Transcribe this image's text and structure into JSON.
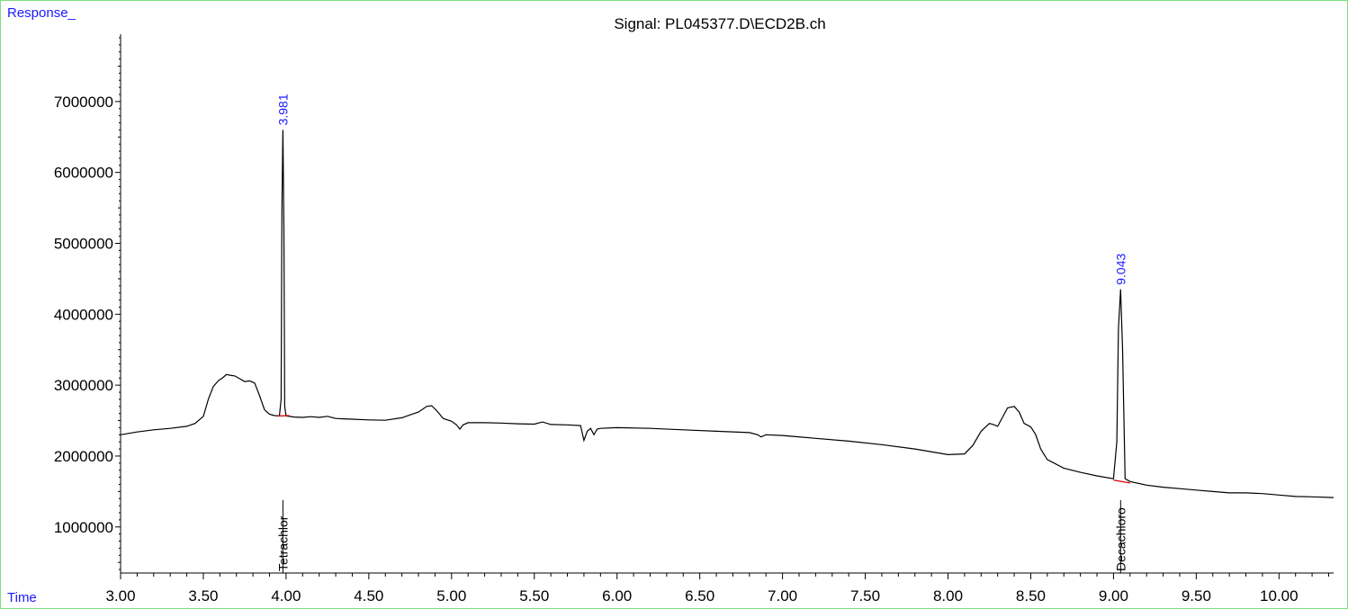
{
  "y_corner_label": "Response_",
  "x_corner_label": "Time",
  "colors": {
    "frame": "#7fe07f",
    "signal": "#000000",
    "baseline": "#d40000",
    "peak_label": "#1a1aff",
    "axis": "#000000"
  },
  "chart_data": {
    "type": "line",
    "title": "Signal: PL045377.D\\ECD2B.ch",
    "xlabel": "Time",
    "ylabel": "Response_",
    "xlim": [
      3.0,
      10.33
    ],
    "ylim": [
      350000,
      7950000
    ],
    "x_ticks": [
      3.0,
      3.5,
      4.0,
      4.5,
      5.0,
      5.5,
      6.0,
      6.5,
      7.0,
      7.5,
      8.0,
      8.5,
      9.0,
      9.5,
      10.0
    ],
    "x_tick_labels": [
      "3.00",
      "3.50",
      "4.00",
      "4.50",
      "5.00",
      "5.50",
      "6.00",
      "6.50",
      "7.00",
      "7.50",
      "8.00",
      "8.50",
      "9.00",
      "9.50",
      "10.00"
    ],
    "y_ticks": [
      1000000,
      2000000,
      3000000,
      4000000,
      5000000,
      6000000,
      7000000
    ],
    "y_tick_labels": [
      "1000000",
      "2000000",
      "3000000",
      "4000000",
      "5000000",
      "6000000",
      "7000000"
    ],
    "grid": false,
    "series": [
      {
        "x": [
          3.0,
          3.1,
          3.2,
          3.3,
          3.4,
          3.45,
          3.5,
          3.53,
          3.56,
          3.59,
          3.62,
          3.64,
          3.66,
          3.69,
          3.72,
          3.75,
          3.78,
          3.81,
          3.84,
          3.87,
          3.9,
          3.93,
          3.96,
          3.97,
          3.975,
          3.981,
          3.987,
          3.992,
          4.0,
          4.05,
          4.1,
          4.15,
          4.2,
          4.25,
          4.3,
          4.35,
          4.4,
          4.5,
          4.6,
          4.7,
          4.75,
          4.8,
          4.85,
          4.88,
          4.91,
          4.95,
          5.0,
          5.03,
          5.05,
          5.07,
          5.1,
          5.2,
          5.3,
          5.4,
          5.5,
          5.55,
          5.6,
          5.7,
          5.78,
          5.8,
          5.82,
          5.84,
          5.86,
          5.88,
          5.9,
          6.0,
          6.2,
          6.4,
          6.6,
          6.8,
          6.85,
          6.87,
          6.9,
          7.0,
          7.2,
          7.4,
          7.6,
          7.8,
          8.0,
          8.1,
          8.15,
          8.2,
          8.25,
          8.28,
          8.3,
          8.33,
          8.36,
          8.4,
          8.43,
          8.46,
          8.5,
          8.53,
          8.56,
          8.6,
          8.7,
          8.8,
          8.9,
          9.0,
          9.02,
          9.03,
          9.043,
          9.055,
          9.07,
          9.1,
          9.2,
          9.3,
          9.4,
          9.5,
          9.6,
          9.7,
          9.8,
          9.9,
          10.0,
          10.1,
          10.2,
          10.33
        ],
        "y": [
          2300000,
          2340000,
          2370000,
          2390000,
          2420000,
          2460000,
          2560000,
          2800000,
          2980000,
          3060000,
          3110000,
          3150000,
          3140000,
          3130000,
          3090000,
          3050000,
          3060000,
          3030000,
          2850000,
          2650000,
          2590000,
          2570000,
          2565000,
          2800000,
          5500000,
          6600000,
          5200000,
          2700000,
          2565000,
          2550000,
          2545000,
          2555000,
          2545000,
          2560000,
          2530000,
          2525000,
          2520000,
          2510000,
          2505000,
          2540000,
          2580000,
          2620000,
          2700000,
          2710000,
          2640000,
          2530000,
          2490000,
          2440000,
          2380000,
          2440000,
          2470000,
          2470000,
          2465000,
          2455000,
          2450000,
          2480000,
          2445000,
          2440000,
          2430000,
          2220000,
          2350000,
          2390000,
          2300000,
          2380000,
          2390000,
          2400000,
          2390000,
          2370000,
          2350000,
          2330000,
          2300000,
          2270000,
          2300000,
          2290000,
          2250000,
          2210000,
          2160000,
          2100000,
          2020000,
          2030000,
          2150000,
          2350000,
          2460000,
          2440000,
          2420000,
          2550000,
          2680000,
          2700000,
          2620000,
          2460000,
          2410000,
          2300000,
          2100000,
          1950000,
          1830000,
          1770000,
          1720000,
          1680000,
          2200000,
          3800000,
          4350000,
          3500000,
          1680000,
          1640000,
          1590000,
          1560000,
          1540000,
          1520000,
          1500000,
          1480000,
          1480000,
          1470000,
          1450000,
          1430000,
          1425000,
          1415000
        ]
      }
    ],
    "peaks": [
      {
        "rt_label": "3.981",
        "rt": 3.981,
        "height": 6600000,
        "compound": "Tetrachlor",
        "baseline_x": [
          3.95,
          4.02
        ],
        "baseline_y": [
          2565000,
          2570000
        ]
      },
      {
        "rt_label": "9.043",
        "rt": 9.043,
        "height": 4350000,
        "compound": "Decachloro",
        "baseline_x": [
          9.0,
          9.1
        ],
        "baseline_y": [
          1660000,
          1620000
        ]
      }
    ]
  }
}
